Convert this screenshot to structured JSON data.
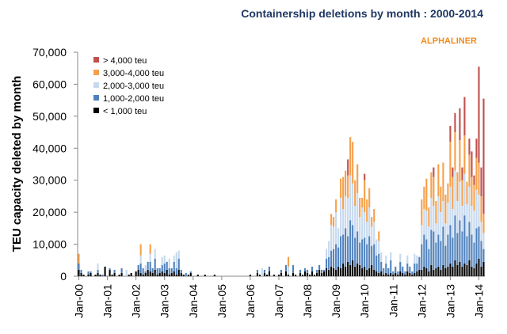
{
  "chart_data": {
    "type": "stacked_bar",
    "title": "Containership deletions by month : 2000-2014",
    "annotation": "ALPHALINER",
    "y_label": "TEU capacity deleted by month",
    "categories": [
      "Jan-00",
      null,
      null,
      null,
      null,
      null,
      null,
      null,
      null,
      null,
      null,
      null,
      "Jan-01",
      null,
      null,
      null,
      null,
      null,
      null,
      null,
      null,
      null,
      null,
      null,
      "Jan-02",
      null,
      null,
      null,
      null,
      null,
      null,
      null,
      null,
      null,
      null,
      null,
      "Jan-03",
      null,
      null,
      null,
      null,
      null,
      null,
      null,
      null,
      null,
      null,
      null,
      "Jan-04",
      null,
      null,
      null,
      null,
      null,
      null,
      null,
      null,
      null,
      null,
      null,
      "Jan-05",
      null,
      null,
      null,
      null,
      null,
      null,
      null,
      null,
      null,
      null,
      null,
      "Jan-06",
      null,
      null,
      null,
      null,
      null,
      null,
      null,
      null,
      null,
      null,
      null,
      "Jan-07",
      null,
      null,
      null,
      null,
      null,
      null,
      null,
      null,
      null,
      null,
      null,
      "Jan-08",
      null,
      null,
      null,
      null,
      null,
      null,
      null,
      null,
      null,
      null,
      null,
      "Jan-09",
      null,
      null,
      null,
      null,
      null,
      null,
      null,
      null,
      null,
      null,
      null,
      "Jan-10",
      null,
      null,
      null,
      null,
      null,
      null,
      null,
      null,
      null,
      null,
      null,
      "Jan-11",
      null,
      null,
      null,
      null,
      null,
      null,
      null,
      null,
      null,
      null,
      null,
      "Jan-12",
      null,
      null,
      null,
      null,
      null,
      null,
      null,
      null,
      null,
      null,
      null,
      "Jan-13",
      null,
      null,
      null,
      null,
      null,
      null,
      null,
      null,
      null,
      null,
      null,
      "Jan-14",
      null,
      null
    ],
    "series": [
      {
        "name": "< 1,000 teu",
        "color": "#000000",
        "values": [
          2000,
          1000,
          500,
          0,
          500,
          1000,
          0,
          500,
          1000,
          500,
          0,
          3000,
          0,
          2000,
          500,
          1000,
          0,
          500,
          1000,
          0,
          0,
          500,
          1000,
          0,
          1500,
          2000,
          1000,
          500,
          1000,
          2000,
          1500,
          1000,
          2000,
          500,
          1000,
          1500,
          1000,
          2000,
          500,
          1000,
          1500,
          500,
          2000,
          1000,
          500,
          0,
          500,
          1000,
          0,
          0,
          500,
          0,
          0,
          500,
          0,
          0,
          0,
          500,
          0,
          0,
          0,
          0,
          0,
          0,
          0,
          0,
          0,
          0,
          0,
          0,
          0,
          0,
          500,
          0,
          0,
          1000,
          500,
          0,
          1000,
          500,
          1500,
          0,
          500,
          0,
          500,
          1000,
          0,
          1500,
          500,
          0,
          1000,
          500,
          0,
          1000,
          500,
          1500,
          1000,
          500,
          1500,
          500,
          1000,
          2000,
          1000,
          1500,
          2500,
          2000,
          3000,
          2500,
          2000,
          3000,
          2500,
          4000,
          3000,
          4500,
          3500,
          5000,
          3000,
          4000,
          3500,
          2500,
          3000,
          2000,
          2500,
          3500,
          2000,
          1500,
          1000,
          1500,
          500,
          1000,
          500,
          1000,
          500,
          1000,
          500,
          1500,
          1000,
          500,
          1500,
          1000,
          500,
          1000,
          1500,
          2000,
          2000,
          3000,
          2500,
          1500,
          3500,
          2000,
          2500,
          3000,
          2000,
          3500,
          2500,
          3000,
          4000,
          3000,
          5000,
          3500,
          4500,
          3000,
          4000,
          3500,
          5000,
          3000,
          2500,
          4000,
          5500,
          3000,
          4500
        ]
      },
      {
        "name": "1,000-2,000 teu",
        "color": "#4f81bd",
        "values": [
          2000,
          1000,
          0,
          0,
          1000,
          500,
          0,
          0,
          1000,
          0,
          500,
          0,
          0,
          500,
          0,
          1000,
          0,
          0,
          1500,
          0,
          0,
          0,
          0,
          0,
          0,
          1500,
          3000,
          2000,
          500,
          2500,
          3000,
          1500,
          3500,
          2000,
          1500,
          2000,
          3000,
          2500,
          2000,
          1500,
          3000,
          2000,
          3500,
          1000,
          0,
          1000,
          0,
          500,
          0,
          0,
          0,
          0,
          0,
          0,
          0,
          0,
          0,
          0,
          0,
          0,
          0,
          0,
          0,
          0,
          0,
          0,
          0,
          0,
          0,
          0,
          0,
          0,
          0,
          0,
          0,
          1000,
          0,
          0,
          1000,
          0,
          1500,
          0,
          0,
          0,
          0,
          1000,
          0,
          2000,
          0,
          0,
          2500,
          0,
          0,
          1000,
          0,
          1000,
          1000,
          0,
          1500,
          0,
          1000,
          1500,
          1000,
          500,
          3000,
          4000,
          5000,
          6000,
          8000,
          6000,
          10000,
          9000,
          12000,
          8000,
          14000,
          11000,
          9000,
          10000,
          7000,
          9000,
          9000,
          8000,
          10000,
          6000,
          8000,
          5000,
          6000,
          3000,
          2000,
          3000,
          2000,
          4000,
          1000,
          2000,
          1000,
          3000,
          2000,
          1000,
          2500,
          2000,
          1000,
          3000,
          2500,
          4000,
          8000,
          10000,
          9000,
          7000,
          11000,
          12000,
          8000,
          10000,
          9000,
          12000,
          7000,
          10000,
          12000,
          9000,
          14000,
          10000,
          13000,
          11000,
          15000,
          9000,
          12000,
          10000,
          8000,
          11000,
          10000,
          8000,
          4000
        ]
      },
      {
        "name": "2,000-3,000 teu",
        "color": "#c6d9ee",
        "values": [
          0,
          0,
          0,
          0,
          0,
          0,
          0,
          0,
          2000,
          0,
          0,
          0,
          0,
          0,
          0,
          0,
          0,
          0,
          0,
          0,
          2000,
          0,
          0,
          0,
          0,
          0,
          2500,
          0,
          2000,
          0,
          2500,
          0,
          3000,
          0,
          0,
          2500,
          2500,
          0,
          3000,
          0,
          2000,
          5000,
          2500,
          0,
          0,
          0,
          0,
          0,
          0,
          0,
          0,
          0,
          0,
          0,
          0,
          0,
          0,
          0,
          0,
          0,
          0,
          0,
          0,
          0,
          0,
          0,
          0,
          0,
          0,
          0,
          0,
          0,
          0,
          0,
          0,
          0,
          0,
          2500,
          0,
          0,
          0,
          0,
          0,
          0,
          0,
          0,
          0,
          0,
          2500,
          0,
          0,
          0,
          0,
          0,
          0,
          0,
          0,
          0,
          0,
          0,
          0,
          0,
          0,
          0,
          3000,
          5000,
          8000,
          7000,
          10000,
          6000,
          12000,
          8000,
          10000,
          12000,
          14000,
          13000,
          10000,
          12000,
          8000,
          10000,
          8000,
          7000,
          9000,
          6000,
          7000,
          5000,
          4000,
          3000,
          0,
          2500,
          0,
          2500,
          0,
          0,
          0,
          2500,
          0,
          0,
          2500,
          0,
          0,
          3000,
          2500,
          0,
          6000,
          8000,
          9000,
          7000,
          10000,
          8000,
          6000,
          12000,
          9000,
          8000,
          7000,
          10000,
          12000,
          9000,
          14000,
          10000,
          12000,
          8000,
          13000,
          10000,
          11000,
          9000,
          10000,
          12000,
          10000,
          6000,
          5000
        ]
      },
      {
        "name": "3,000-4,000 teu",
        "color": "#f5a04a",
        "values": [
          3000,
          0,
          0,
          0,
          0,
          0,
          0,
          0,
          0,
          0,
          0,
          0,
          0,
          0,
          0,
          0,
          0,
          0,
          0,
          0,
          0,
          0,
          0,
          0,
          0,
          0,
          3500,
          0,
          0,
          0,
          3000,
          0,
          0,
          0,
          0,
          0,
          0,
          0,
          0,
          0,
          0,
          0,
          0,
          0,
          0,
          0,
          0,
          0,
          0,
          0,
          0,
          0,
          0,
          0,
          0,
          0,
          0,
          0,
          0,
          0,
          0,
          0,
          0,
          0,
          0,
          0,
          0,
          0,
          0,
          0,
          0,
          0,
          0,
          0,
          0,
          0,
          0,
          0,
          0,
          0,
          0,
          0,
          0,
          0,
          0,
          0,
          0,
          0,
          3000,
          0,
          0,
          0,
          0,
          0,
          0,
          0,
          0,
          0,
          0,
          0,
          0,
          0,
          0,
          0,
          0,
          0,
          3500,
          3000,
          4000,
          0,
          6000,
          10000,
          8000,
          7000,
          12000,
          13000,
          8000,
          9000,
          6000,
          3000,
          10000,
          7000,
          6000,
          3000,
          4000,
          0,
          3000,
          0,
          0,
          0,
          0,
          0,
          0,
          0,
          0,
          0,
          0,
          0,
          0,
          0,
          0,
          0,
          0,
          0,
          8000,
          7000,
          10000,
          6000,
          8000,
          9000,
          7000,
          10000,
          8000,
          12000,
          9000,
          6000,
          14000,
          10000,
          12000,
          9000,
          13000,
          8000,
          12000,
          7000,
          10000,
          9000,
          8000,
          10000,
          10000,
          8000,
          6000
        ]
      },
      {
        "name": "> 4,000 teu",
        "color": "#c0504d",
        "values": [
          0,
          0,
          0,
          0,
          0,
          0,
          0,
          0,
          0,
          0,
          0,
          0,
          0,
          0,
          0,
          0,
          0,
          0,
          0,
          0,
          0,
          0,
          0,
          0,
          0,
          0,
          0,
          0,
          0,
          0,
          0,
          0,
          0,
          0,
          0,
          0,
          0,
          0,
          0,
          0,
          0,
          0,
          0,
          0,
          0,
          0,
          0,
          0,
          0,
          0,
          0,
          0,
          0,
          0,
          0,
          0,
          0,
          0,
          0,
          0,
          0,
          0,
          0,
          0,
          0,
          0,
          0,
          0,
          0,
          0,
          0,
          0,
          0,
          0,
          0,
          0,
          0,
          0,
          0,
          0,
          0,
          0,
          0,
          0,
          0,
          0,
          0,
          0,
          0,
          0,
          0,
          0,
          0,
          0,
          0,
          0,
          0,
          0,
          0,
          0,
          0,
          0,
          0,
          0,
          0,
          0,
          0,
          0,
          0,
          0,
          0,
          0,
          0,
          5000,
          0,
          0,
          0,
          0,
          0,
          0,
          2000,
          0,
          0,
          0,
          0,
          0,
          0,
          0,
          0,
          0,
          0,
          0,
          0,
          0,
          0,
          0,
          0,
          0,
          0,
          0,
          0,
          0,
          0,
          0,
          0,
          0,
          0,
          0,
          0,
          3000,
          0,
          0,
          0,
          0,
          0,
          0,
          5000,
          3000,
          6000,
          0,
          10000,
          4000,
          12000,
          0,
          5000,
          8000,
          3000,
          6000,
          30000,
          9000,
          36000
        ]
      }
    ],
    "ylim": [
      0,
      70000
    ],
    "yticks": [
      0,
      {
        "value": 10000,
        "label": "10,000"
      },
      {
        "value": 20000,
        "label": "20,000"
      },
      {
        "value": 30000,
        "label": "30,000"
      },
      {
        "value": 40000,
        "label": "40,000"
      },
      {
        "value": 50000,
        "label": "50,000"
      },
      {
        "value": 60000,
        "label": "60,000"
      },
      {
        "value": 70000,
        "label": "70,000"
      }
    ],
    "grid": false,
    "legend": "upper left"
  }
}
